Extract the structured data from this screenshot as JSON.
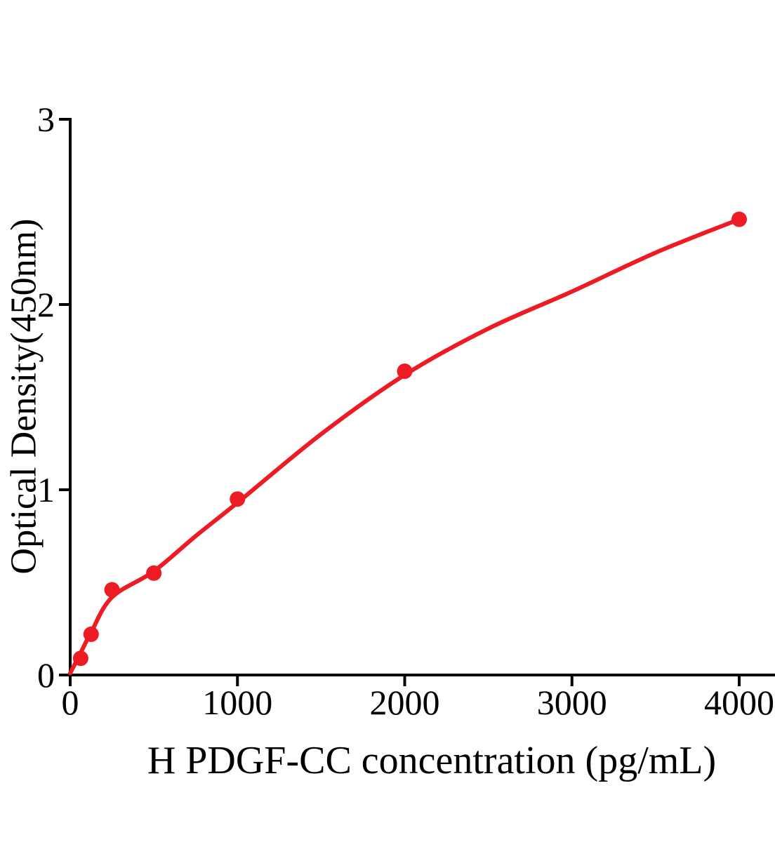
{
  "chart_data": {
    "type": "scatter",
    "title": "",
    "xlabel": "H PDGF-CC concentration (pg/mL)",
    "ylabel": "Optical Density(450nm)",
    "xlim": [
      0,
      4000
    ],
    "ylim": [
      0,
      3
    ],
    "x_ticks": [
      "0",
      "1000",
      "2000",
      "3000",
      "4000"
    ],
    "y_ticks": [
      "0",
      "1",
      "2",
      "3"
    ],
    "grid": false,
    "legend": "none",
    "accent_color": "#ed1c24",
    "axis_color": "#000000",
    "series": [
      {
        "name": "standard-data-points",
        "type": "scatter",
        "color": "#ed1c24",
        "x": [
          62.5,
          125,
          250,
          500,
          1000,
          2000,
          4000
        ],
        "y": [
          0.09,
          0.22,
          0.46,
          0.55,
          0.95,
          1.64,
          2.46
        ]
      },
      {
        "name": "fitted-curve",
        "type": "line",
        "color": "#ed1c24",
        "x": [
          0,
          62.5,
          125,
          250,
          500,
          750,
          1000,
          1500,
          2000,
          2500,
          3000,
          3500,
          4000
        ],
        "y": [
          0.01,
          0.12,
          0.23,
          0.42,
          0.56,
          0.75,
          0.93,
          1.3,
          1.62,
          1.87,
          2.07,
          2.28,
          2.46
        ]
      }
    ]
  }
}
